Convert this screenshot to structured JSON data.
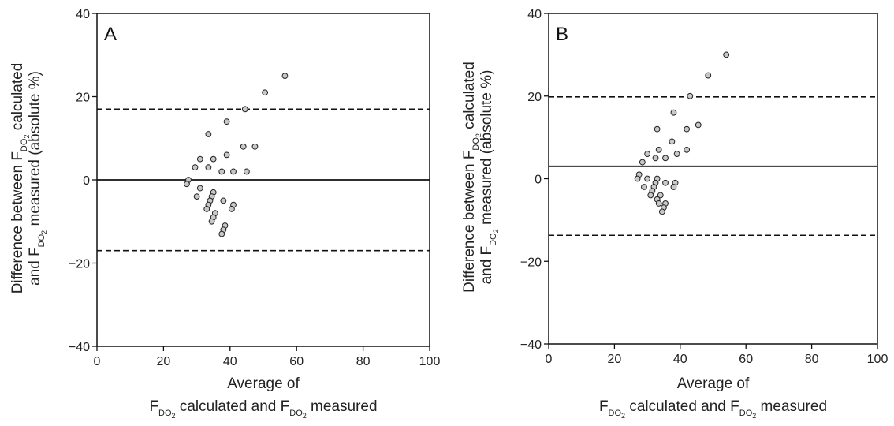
{
  "chart_data": [
    {
      "panel_label": "A",
      "type": "scatter",
      "xlim": [
        0,
        100
      ],
      "ylim": [
        -40,
        40
      ],
      "xticks": [
        0,
        20,
        40,
        60,
        80,
        100
      ],
      "yticks": [
        -40,
        -20,
        0,
        20,
        40
      ],
      "grid": false,
      "mean_line": 0,
      "limit_lines": [
        17,
        -17
      ],
      "ylabel_line1": "Difference between F",
      "ylabel_sub1": "DO",
      "ylabel_subsub1": "2",
      "ylabel_line1_end": " calculated",
      "ylabel_line2": "and F",
      "ylabel_sub2": "DO",
      "ylabel_subsub2": "2",
      "ylabel_line2_end": " measured (absolute %)",
      "xlabel_line1": "Average of",
      "xlabel_line2a": "F",
      "xlabel_sub_a": "DO",
      "xlabel_subsub_a": "2",
      "xlabel_line2b": " calculated and F",
      "xlabel_sub_b": "DO",
      "xlabel_subsub_b": "2",
      "xlabel_line2c": " measured",
      "points": [
        {
          "x": 56.5,
          "y": 25
        },
        {
          "x": 50.5,
          "y": 21
        },
        {
          "x": 44.5,
          "y": 17
        },
        {
          "x": 39,
          "y": 14
        },
        {
          "x": 33.5,
          "y": 11
        },
        {
          "x": 47.5,
          "y": 8
        },
        {
          "x": 44,
          "y": 8
        },
        {
          "x": 39,
          "y": 6
        },
        {
          "x": 31,
          "y": 5
        },
        {
          "x": 35,
          "y": 5
        },
        {
          "x": 29.5,
          "y": 3
        },
        {
          "x": 33.5,
          "y": 3
        },
        {
          "x": 37.5,
          "y": 2
        },
        {
          "x": 41,
          "y": 2
        },
        {
          "x": 45,
          "y": 2
        },
        {
          "x": 27.5,
          "y": 0
        },
        {
          "x": 27,
          "y": -1
        },
        {
          "x": 31,
          "y": -2
        },
        {
          "x": 35,
          "y": -3
        },
        {
          "x": 34.5,
          "y": -4
        },
        {
          "x": 30,
          "y": -4
        },
        {
          "x": 34,
          "y": -5
        },
        {
          "x": 38,
          "y": -5
        },
        {
          "x": 33.5,
          "y": -6
        },
        {
          "x": 41,
          "y": -6
        },
        {
          "x": 33,
          "y": -7
        },
        {
          "x": 40.5,
          "y": -7
        },
        {
          "x": 35.5,
          "y": -8
        },
        {
          "x": 35,
          "y": -9
        },
        {
          "x": 34.5,
          "y": -10
        },
        {
          "x": 38.5,
          "y": -11
        },
        {
          "x": 38,
          "y": -12
        },
        {
          "x": 37.5,
          "y": -13
        }
      ]
    },
    {
      "panel_label": "B",
      "type": "scatter",
      "xlim": [
        0,
        100
      ],
      "ylim": [
        -40,
        40
      ],
      "xticks": [
        0,
        20,
        40,
        60,
        80,
        100
      ],
      "yticks": [
        -40,
        -20,
        0,
        20,
        40
      ],
      "grid": false,
      "mean_line": 3,
      "limit_lines": [
        19.8,
        -13.7
      ],
      "ylabel_line1": "Difference between F",
      "ylabel_sub1": "DO",
      "ylabel_subsub1": "2",
      "ylabel_line1_end": " calculated",
      "ylabel_line2": "and F",
      "ylabel_sub2": "DO",
      "ylabel_subsub2": "2",
      "ylabel_line2_end": " measured (absolute %)",
      "xlabel_line1": "Average of",
      "xlabel_line2a": "F",
      "xlabel_sub_a": "DO",
      "xlabel_subsub_a": "2",
      "xlabel_line2b": " calculated and F",
      "xlabel_sub_b": "DO",
      "xlabel_subsub_b": "2",
      "xlabel_line2c": " measured",
      "points": [
        {
          "x": 54,
          "y": 30
        },
        {
          "x": 48.5,
          "y": 25
        },
        {
          "x": 43,
          "y": 20
        },
        {
          "x": 38,
          "y": 16
        },
        {
          "x": 45.5,
          "y": 13
        },
        {
          "x": 33,
          "y": 12
        },
        {
          "x": 42,
          "y": 12
        },
        {
          "x": 37.5,
          "y": 9
        },
        {
          "x": 33.5,
          "y": 7
        },
        {
          "x": 42,
          "y": 7
        },
        {
          "x": 30,
          "y": 6
        },
        {
          "x": 39,
          "y": 6
        },
        {
          "x": 32.5,
          "y": 5
        },
        {
          "x": 35.5,
          "y": 5
        },
        {
          "x": 28.5,
          "y": 4
        },
        {
          "x": 27.5,
          "y": 1
        },
        {
          "x": 27,
          "y": 0
        },
        {
          "x": 30,
          "y": 0
        },
        {
          "x": 33,
          "y": 0
        },
        {
          "x": 32.5,
          "y": -1
        },
        {
          "x": 35.5,
          "y": -1
        },
        {
          "x": 38.5,
          "y": -1
        },
        {
          "x": 29,
          "y": -2
        },
        {
          "x": 32,
          "y": -2
        },
        {
          "x": 38,
          "y": -2
        },
        {
          "x": 31.5,
          "y": -3
        },
        {
          "x": 31,
          "y": -4
        },
        {
          "x": 34,
          "y": -4
        },
        {
          "x": 33,
          "y": -5
        },
        {
          "x": 33.5,
          "y": -6
        },
        {
          "x": 35.5,
          "y": -6
        },
        {
          "x": 35,
          "y": -7
        },
        {
          "x": 34.5,
          "y": -8
        }
      ]
    }
  ]
}
